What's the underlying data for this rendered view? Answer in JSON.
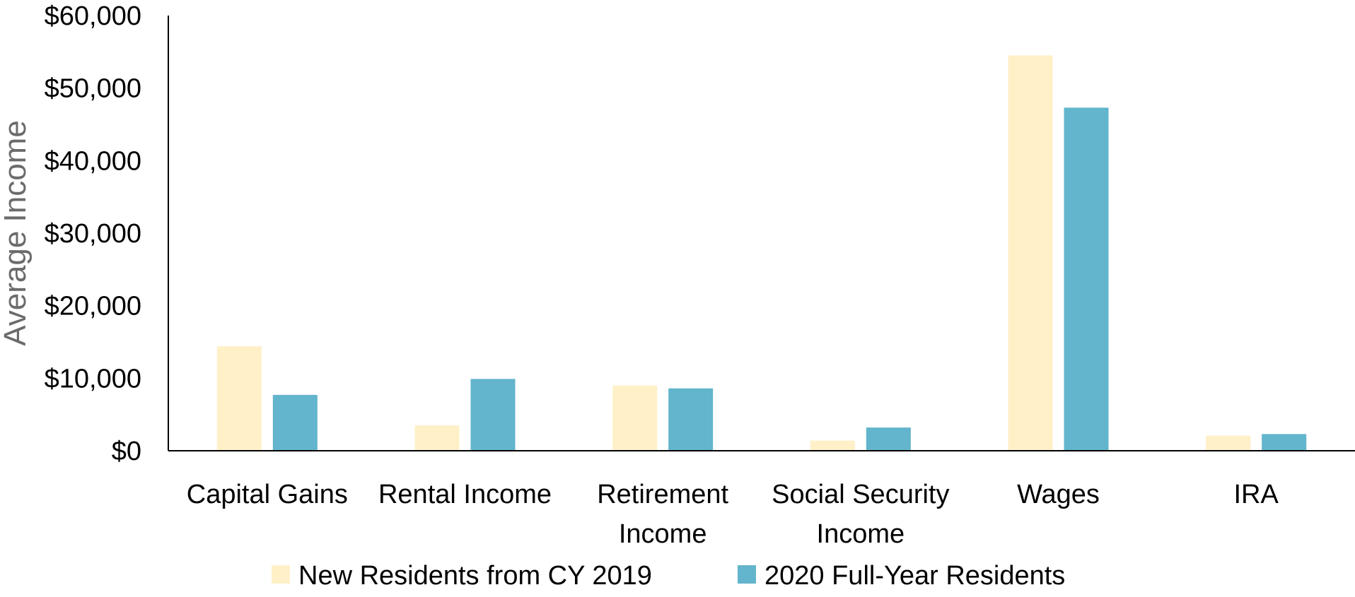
{
  "chart_data": {
    "type": "bar",
    "title": "",
    "xlabel": "",
    "ylabel": "Average Income",
    "ylim": [
      0,
      60000
    ],
    "yticks": [
      0,
      10000,
      20000,
      30000,
      40000,
      50000,
      60000
    ],
    "ytick_labels": [
      "$0",
      "$10,000",
      "$20,000",
      "$30,000",
      "$40,000",
      "$50,000",
      "$60,000"
    ],
    "categories": [
      [
        "Capital Gains"
      ],
      [
        "Rental Income"
      ],
      [
        "Retirement",
        "Income"
      ],
      [
        "Social Security",
        "Income"
      ],
      [
        "Wages"
      ],
      [
        "IRA"
      ]
    ],
    "series": [
      {
        "name": "New Residents from CY 2019",
        "color": "#FFF0C8",
        "values": [
          14400,
          3500,
          9000,
          1400,
          54500,
          2100
        ]
      },
      {
        "name": "2020 Full-Year Residents",
        "color": "#62B5CC",
        "values": [
          7700,
          9900,
          8600,
          3200,
          47300,
          2300
        ]
      }
    ],
    "grid": false,
    "legend_position": "bottom"
  }
}
